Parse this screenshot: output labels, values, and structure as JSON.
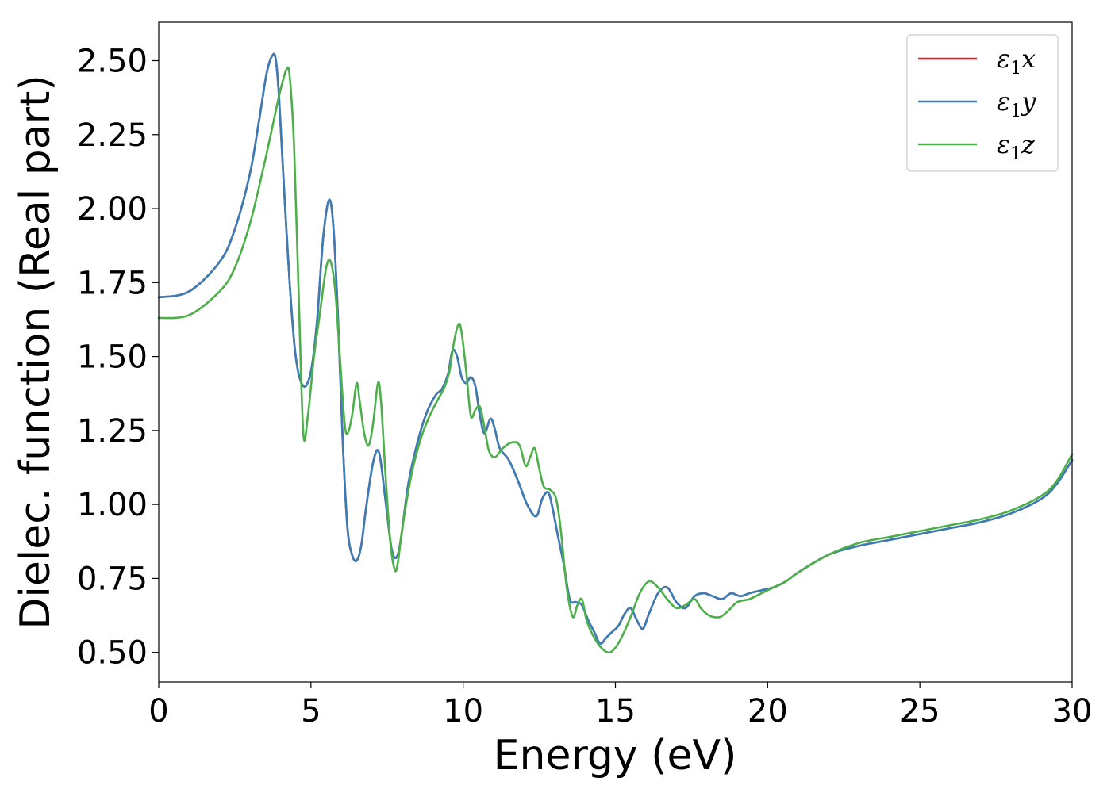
{
  "chart_data": {
    "type": "line",
    "title": "",
    "xlabel": "Energy (eV)",
    "ylabel": "Dielec. function (Real part)",
    "xlim": [
      0,
      30
    ],
    "ylim": [
      0.4,
      2.63
    ],
    "xticks": [
      0,
      5,
      10,
      15,
      20,
      25,
      30
    ],
    "xtick_labels": [
      "0",
      "5",
      "10",
      "15",
      "20",
      "25",
      "30"
    ],
    "yticks": [
      0.5,
      0.75,
      1.0,
      1.25,
      1.5,
      1.75,
      2.0,
      2.25,
      2.5
    ],
    "ytick_labels": [
      "0.50",
      "0.75",
      "1.00",
      "1.25",
      "1.50",
      "1.75",
      "2.00",
      "2.25",
      "2.50"
    ],
    "grid": false,
    "legend_position": "top-right",
    "legend": [
      {
        "base": "ε",
        "sub": "1",
        "var": "x",
        "color": "#e41a1c"
      },
      {
        "base": "ε",
        "sub": "1",
        "var": "y",
        "color": "#377eb8"
      },
      {
        "base": "ε",
        "sub": "1",
        "var": "z",
        "color": "#4daf4a"
      }
    ],
    "series": [
      {
        "color": "#e41a1c",
        "x": [
          0,
          1,
          2,
          2.5,
          3,
          3.3,
          3.55,
          3.75,
          3.85,
          3.95,
          4.1,
          4.3,
          4.5,
          4.75,
          5.0,
          5.2,
          5.4,
          5.6,
          5.75,
          5.9,
          6.05,
          6.2,
          6.35,
          6.5,
          6.65,
          6.8,
          7.0,
          7.15,
          7.25,
          7.35,
          7.5,
          7.65,
          7.8,
          7.95,
          8.2,
          8.5,
          8.8,
          9.1,
          9.3,
          9.5,
          9.65,
          9.8,
          9.95,
          10.1,
          10.25,
          10.4,
          10.55,
          10.7,
          10.9,
          11.05,
          11.2,
          11.5,
          11.8,
          12.1,
          12.4,
          12.6,
          12.8,
          12.95,
          13.1,
          13.3,
          13.5,
          13.7,
          13.9,
          14.1,
          14.3,
          14.5,
          14.7,
          14.9,
          15.1,
          15.3,
          15.5,
          15.7,
          15.9,
          16.1,
          16.4,
          16.7,
          17.0,
          17.3,
          17.6,
          17.9,
          18.2,
          18.5,
          18.8,
          19.1,
          19.4,
          19.8,
          20.2,
          20.6,
          21,
          22,
          23,
          24,
          25,
          26,
          27,
          28,
          29,
          29.5,
          30
        ],
        "y": [
          1.7,
          1.72,
          1.82,
          1.93,
          2.12,
          2.3,
          2.46,
          2.52,
          2.5,
          2.38,
          2.1,
          1.75,
          1.5,
          1.4,
          1.45,
          1.62,
          1.9,
          2.03,
          1.92,
          1.6,
          1.2,
          0.92,
          0.83,
          0.81,
          0.86,
          0.98,
          1.12,
          1.18,
          1.17,
          1.1,
          0.97,
          0.85,
          0.82,
          0.88,
          1.07,
          1.21,
          1.31,
          1.37,
          1.39,
          1.44,
          1.52,
          1.5,
          1.43,
          1.41,
          1.43,
          1.4,
          1.3,
          1.24,
          1.29,
          1.25,
          1.19,
          1.15,
          1.08,
          1.0,
          0.96,
          1.02,
          1.04,
          0.98,
          0.9,
          0.8,
          0.68,
          0.67,
          0.66,
          0.61,
          0.57,
          0.53,
          0.55,
          0.57,
          0.59,
          0.63,
          0.65,
          0.61,
          0.58,
          0.63,
          0.7,
          0.72,
          0.67,
          0.65,
          0.69,
          0.7,
          0.69,
          0.68,
          0.7,
          0.69,
          0.7,
          0.71,
          0.72,
          0.74,
          0.77,
          0.83,
          0.86,
          0.88,
          0.9,
          0.92,
          0.94,
          0.97,
          1.02,
          1.07,
          1.15
        ]
      },
      {
        "color": "#377eb8",
        "x": [
          0,
          1,
          2,
          2.5,
          3,
          3.3,
          3.55,
          3.75,
          3.85,
          3.95,
          4.1,
          4.3,
          4.5,
          4.75,
          5.0,
          5.2,
          5.4,
          5.6,
          5.75,
          5.9,
          6.05,
          6.2,
          6.35,
          6.5,
          6.65,
          6.8,
          7.0,
          7.15,
          7.25,
          7.35,
          7.5,
          7.65,
          7.8,
          7.95,
          8.2,
          8.5,
          8.8,
          9.1,
          9.3,
          9.5,
          9.65,
          9.8,
          9.95,
          10.1,
          10.25,
          10.4,
          10.55,
          10.7,
          10.9,
          11.05,
          11.2,
          11.5,
          11.8,
          12.1,
          12.4,
          12.6,
          12.8,
          12.95,
          13.1,
          13.3,
          13.5,
          13.7,
          13.9,
          14.1,
          14.3,
          14.5,
          14.7,
          14.9,
          15.1,
          15.3,
          15.5,
          15.7,
          15.9,
          16.1,
          16.4,
          16.7,
          17.0,
          17.3,
          17.6,
          17.9,
          18.2,
          18.5,
          18.8,
          19.1,
          19.4,
          19.8,
          20.2,
          20.6,
          21,
          22,
          23,
          24,
          25,
          26,
          27,
          28,
          29,
          29.5,
          30
        ],
        "y": [
          1.7,
          1.72,
          1.82,
          1.93,
          2.12,
          2.3,
          2.46,
          2.52,
          2.5,
          2.38,
          2.1,
          1.75,
          1.5,
          1.4,
          1.45,
          1.62,
          1.9,
          2.03,
          1.92,
          1.6,
          1.2,
          0.92,
          0.83,
          0.81,
          0.86,
          0.98,
          1.12,
          1.18,
          1.17,
          1.1,
          0.97,
          0.85,
          0.82,
          0.88,
          1.07,
          1.21,
          1.31,
          1.37,
          1.39,
          1.44,
          1.52,
          1.5,
          1.43,
          1.41,
          1.43,
          1.4,
          1.3,
          1.24,
          1.29,
          1.25,
          1.19,
          1.15,
          1.08,
          1.0,
          0.96,
          1.02,
          1.04,
          0.98,
          0.9,
          0.8,
          0.68,
          0.67,
          0.66,
          0.61,
          0.57,
          0.53,
          0.55,
          0.57,
          0.59,
          0.63,
          0.65,
          0.61,
          0.58,
          0.63,
          0.7,
          0.72,
          0.67,
          0.65,
          0.69,
          0.7,
          0.69,
          0.68,
          0.7,
          0.69,
          0.7,
          0.71,
          0.72,
          0.74,
          0.77,
          0.83,
          0.86,
          0.88,
          0.9,
          0.92,
          0.94,
          0.97,
          1.02,
          1.07,
          1.15
        ]
      },
      {
        "color": "#4daf4a",
        "x": [
          0,
          1,
          2,
          2.5,
          3,
          3.4,
          3.7,
          3.95,
          4.1,
          4.2,
          4.3,
          4.45,
          4.6,
          4.75,
          4.9,
          5.1,
          5.3,
          5.5,
          5.65,
          5.8,
          5.95,
          6.1,
          6.2,
          6.35,
          6.5,
          6.6,
          6.75,
          6.9,
          7.05,
          7.2,
          7.3,
          7.45,
          7.6,
          7.75,
          7.85,
          8.0,
          8.3,
          8.6,
          8.9,
          9.2,
          9.4,
          9.55,
          9.7,
          9.85,
          9.95,
          10.1,
          10.25,
          10.4,
          10.55,
          10.7,
          10.85,
          11.05,
          11.3,
          11.6,
          11.85,
          12.05,
          12.2,
          12.35,
          12.5,
          12.65,
          12.85,
          13.05,
          13.2,
          13.4,
          13.6,
          13.75,
          13.9,
          14.05,
          14.25,
          14.5,
          14.75,
          14.95,
          15.2,
          15.5,
          15.8,
          16.1,
          16.4,
          16.7,
          17.0,
          17.3,
          17.6,
          17.8,
          18.0,
          18.2,
          18.45,
          18.7,
          19.0,
          19.4,
          19.8,
          20.2,
          20.6,
          21,
          22,
          23,
          24,
          25,
          26,
          27,
          28,
          29,
          29.5,
          30
        ],
        "y": [
          1.63,
          1.64,
          1.72,
          1.8,
          1.95,
          2.12,
          2.26,
          2.38,
          2.44,
          2.47,
          2.45,
          2.2,
          1.7,
          1.24,
          1.3,
          1.5,
          1.65,
          1.8,
          1.82,
          1.72,
          1.5,
          1.28,
          1.24,
          1.3,
          1.41,
          1.35,
          1.24,
          1.2,
          1.28,
          1.41,
          1.35,
          1.1,
          0.88,
          0.78,
          0.8,
          0.92,
          1.1,
          1.22,
          1.3,
          1.36,
          1.4,
          1.45,
          1.55,
          1.61,
          1.58,
          1.45,
          1.3,
          1.32,
          1.33,
          1.26,
          1.18,
          1.16,
          1.19,
          1.21,
          1.2,
          1.13,
          1.16,
          1.19,
          1.12,
          1.06,
          1.05,
          1.02,
          0.92,
          0.72,
          0.62,
          0.66,
          0.68,
          0.61,
          0.56,
          0.52,
          0.5,
          0.51,
          0.55,
          0.62,
          0.7,
          0.74,
          0.72,
          0.68,
          0.65,
          0.66,
          0.68,
          0.65,
          0.63,
          0.62,
          0.62,
          0.64,
          0.67,
          0.68,
          0.7,
          0.72,
          0.74,
          0.77,
          0.83,
          0.87,
          0.89,
          0.91,
          0.93,
          0.95,
          0.98,
          1.03,
          1.08,
          1.17
        ]
      }
    ]
  }
}
